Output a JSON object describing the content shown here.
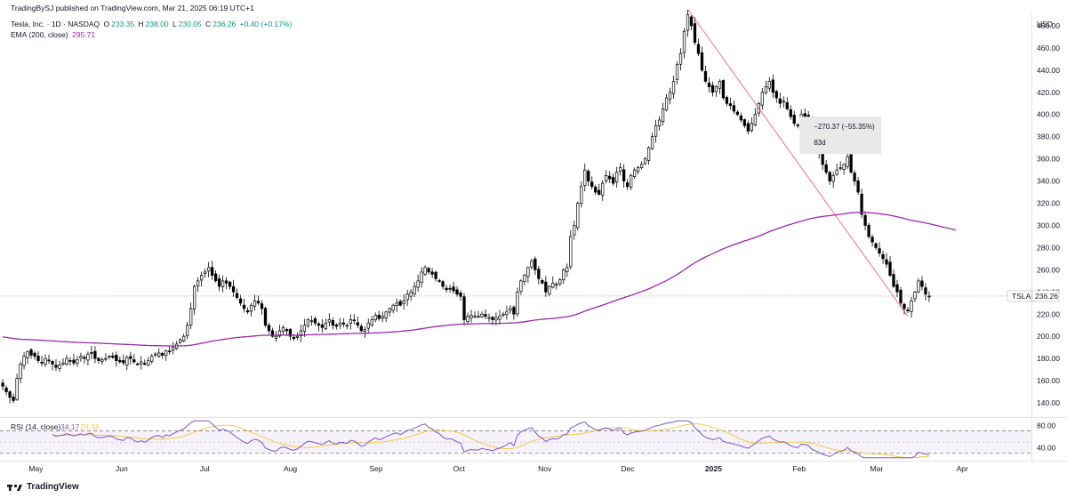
{
  "header": {
    "published": "TradingBySJ published on TradingView.com, Mar 21, 2025 06:19 UTC+1",
    "title": "Tesla, Inc. · 1D · NASDAQ",
    "ohlc": {
      "o_label": "O",
      "o": "233.35",
      "h_label": "H",
      "h": "238.00",
      "l_label": "L",
      "l": "230.05",
      "c_label": "C",
      "c": "236.26",
      "change": "+0.40 (+0.17%)"
    },
    "ema_label": "EMA (200, close)",
    "ema_value": "295.71"
  },
  "currency": "USD",
  "ticker": "TSLA",
  "last_price": "236.26",
  "measure": {
    "change": "−270.37 (−55.35%)",
    "duration": "83d"
  },
  "rsi": {
    "label": "RSI (14, close)",
    "value": "34.17",
    "ma_value": "29.33",
    "upper": 70,
    "lower": 30
  },
  "footer": {
    "brand": "TradingView"
  },
  "colors": {
    "ema": "#9c27b0",
    "rsi": "#7e57c2",
    "rsi_ma": "#f7c948",
    "trend": "#f23645",
    "up_body": "#ffffff",
    "down_body": "#000000",
    "wick": "#000000"
  },
  "chart_data": {
    "type": "candlestick",
    "symbol": "TSLA",
    "y_ticks": [
      140,
      160,
      180,
      200,
      220,
      240,
      260,
      280,
      300,
      320,
      340,
      360,
      380,
      400,
      420,
      440,
      460,
      480
    ],
    "ylim": [
      128,
      492
    ],
    "rsi_ticks": [
      40,
      80
    ],
    "x_ticks": [
      {
        "label": "May",
        "date": "2024-05-01"
      },
      {
        "label": "Jun",
        "date": "2024-06-01"
      },
      {
        "label": "Jul",
        "date": "2024-07-01"
      },
      {
        "label": "Aug",
        "date": "2024-08-01"
      },
      {
        "label": "Sep",
        "date": "2024-09-01"
      },
      {
        "label": "Oct",
        "date": "2024-10-01"
      },
      {
        "label": "Nov",
        "date": "2024-11-01"
      },
      {
        "label": "Dec",
        "date": "2024-12-01"
      },
      {
        "label": "2025",
        "date": "2025-01-01"
      },
      {
        "label": "Feb",
        "date": "2025-02-01"
      },
      {
        "label": "Mar",
        "date": "2025-03-01"
      },
      {
        "label": "Apr",
        "date": "2025-04-01"
      }
    ],
    "xlim": [
      "2024-04-18",
      "2025-04-26"
    ],
    "candle_dates": [
      "2024-04-19",
      "2025-03-20"
    ],
    "close_series": [
      155,
      150,
      145,
      142,
      162,
      175,
      182,
      186,
      183,
      182,
      178,
      176,
      180,
      178,
      175,
      172,
      174,
      176,
      180,
      178,
      176,
      179,
      182,
      180,
      184,
      185,
      180,
      178,
      179,
      180,
      182,
      181,
      178,
      177,
      176,
      181,
      180,
      177,
      175,
      177,
      175,
      178,
      182,
      184,
      185,
      183,
      187,
      186,
      190,
      193,
      197,
      200,
      210,
      225,
      245,
      250,
      255,
      258,
      262,
      255,
      250,
      245,
      250,
      248,
      245,
      240,
      235,
      230,
      225,
      222,
      228,
      232,
      230,
      225,
      210,
      205,
      200,
      200,
      205,
      208,
      205,
      200,
      198,
      200,
      205,
      210,
      215,
      214,
      212,
      210,
      208,
      212,
      215,
      210,
      209,
      212,
      211,
      210,
      215,
      214,
      210,
      205,
      206,
      212,
      215,
      219,
      216,
      218,
      222,
      225,
      228,
      230,
      228,
      232,
      238,
      240,
      245,
      250,
      258,
      262,
      258,
      256,
      252,
      250,
      245,
      242,
      243,
      241,
      238,
      236,
      215,
      218,
      219,
      218,
      218,
      220,
      218,
      217,
      215,
      217,
      218,
      220,
      222,
      225,
      220,
      240,
      250,
      255,
      262,
      268,
      260,
      252,
      248,
      240,
      245,
      248,
      247,
      251,
      260,
      262,
      290,
      300,
      320,
      335,
      350,
      340,
      335,
      330,
      328,
      338,
      345,
      342,
      338,
      348,
      352,
      340,
      335,
      345,
      350,
      352,
      355,
      360,
      370,
      380,
      390,
      395,
      405,
      415,
      420,
      430,
      445,
      455,
      475,
      490,
      480,
      465,
      455,
      440,
      430,
      425,
      420,
      425,
      430,
      415,
      410,
      408,
      403,
      400,
      395,
      390,
      385,
      392,
      400,
      410,
      420,
      425,
      430,
      420,
      415,
      410,
      412,
      405,
      398,
      392,
      390,
      400,
      398,
      395,
      380,
      374,
      365,
      355,
      348,
      340,
      345,
      350,
      352,
      355,
      362,
      348,
      340,
      330,
      310,
      300,
      290,
      285,
      280,
      275,
      270,
      265,
      255,
      245,
      240,
      230,
      225,
      223,
      232,
      240,
      250,
      245,
      238,
      236
    ]
  }
}
